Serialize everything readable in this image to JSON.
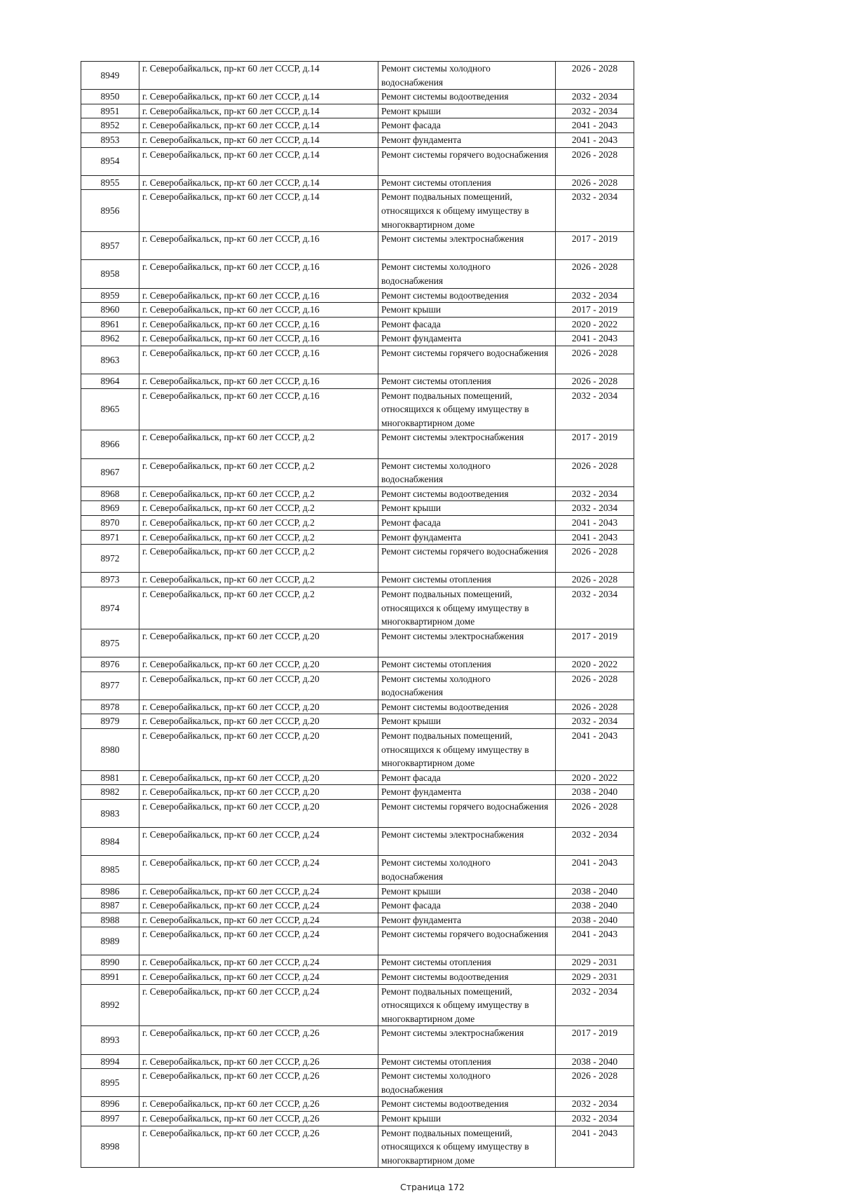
{
  "table": {
    "rows": [
      [
        "8949",
        "г. Северобайкальск, пр-кт 60 лет СССР, д.14",
        "Ремонт системы холодного водоснабжения",
        "2026 - 2028"
      ],
      [
        "8950",
        "г. Северобайкальск, пр-кт 60 лет СССР, д.14",
        "Ремонт системы водоотведения",
        "2032 - 2034"
      ],
      [
        "8951",
        "г. Северобайкальск, пр-кт 60 лет СССР, д.14",
        "Ремонт крыши",
        "2032 - 2034"
      ],
      [
        "8952",
        "г. Северобайкальск, пр-кт 60 лет СССР, д.14",
        "Ремонт фасада",
        "2041 - 2043"
      ],
      [
        "8953",
        "г. Северобайкальск, пр-кт 60 лет СССР, д.14",
        "Ремонт фундамента",
        "2041 - 2043"
      ],
      [
        "8954",
        "г. Северобайкальск, пр-кт 60 лет СССР, д.14",
        "Ремонт системы горячего водоснабжения",
        "2026 - 2028"
      ],
      [
        "8955",
        "г. Северобайкальск, пр-кт 60 лет СССР, д.14",
        "Ремонт системы отопления",
        "2026 - 2028"
      ],
      [
        "8956",
        "г. Северобайкальск, пр-кт 60 лет СССР, д.14",
        "Ремонт подвальных помещений, относящихся к общему имуществу в многоквартирном доме",
        "2032 - 2034"
      ],
      [
        "8957",
        "г. Северобайкальск, пр-кт 60 лет СССР, д.16",
        "Ремонт системы электроснабжения",
        "2017 - 2019"
      ],
      [
        "8958",
        "г. Северобайкальск, пр-кт 60 лет СССР, д.16",
        "Ремонт системы холодного водоснабжения",
        "2026 - 2028"
      ],
      [
        "8959",
        "г. Северобайкальск, пр-кт 60 лет СССР, д.16",
        "Ремонт системы водоотведения",
        "2032 - 2034"
      ],
      [
        "8960",
        "г. Северобайкальск, пр-кт 60 лет СССР, д.16",
        "Ремонт крыши",
        "2017 - 2019"
      ],
      [
        "8961",
        "г. Северобайкальск, пр-кт 60 лет СССР, д.16",
        "Ремонт фасада",
        "2020 - 2022"
      ],
      [
        "8962",
        "г. Северобайкальск, пр-кт 60 лет СССР, д.16",
        "Ремонт фундамента",
        "2041 - 2043"
      ],
      [
        "8963",
        "г. Северобайкальск, пр-кт 60 лет СССР, д.16",
        "Ремонт системы горячего водоснабжения",
        "2026 - 2028"
      ],
      [
        "8964",
        "г. Северобайкальск, пр-кт 60 лет СССР, д.16",
        "Ремонт системы отопления",
        "2026 - 2028"
      ],
      [
        "8965",
        "г. Северобайкальск, пр-кт 60 лет СССР, д.16",
        "Ремонт подвальных помещений, относящихся к общему имуществу в многоквартирном доме",
        "2032 - 2034"
      ],
      [
        "8966",
        "г. Северобайкальск, пр-кт 60 лет СССР, д.2",
        "Ремонт системы электроснабжения",
        "2017 - 2019"
      ],
      [
        "8967",
        "г. Северобайкальск, пр-кт 60 лет СССР, д.2",
        "Ремонт системы холодного водоснабжения",
        "2026 - 2028"
      ],
      [
        "8968",
        "г. Северобайкальск, пр-кт 60 лет СССР, д.2",
        "Ремонт системы водоотведения",
        "2032 - 2034"
      ],
      [
        "8969",
        "г. Северобайкальск, пр-кт 60 лет СССР, д.2",
        "Ремонт крыши",
        "2032 - 2034"
      ],
      [
        "8970",
        "г. Северобайкальск, пр-кт 60 лет СССР, д.2",
        "Ремонт фасада",
        "2041 - 2043"
      ],
      [
        "8971",
        "г. Северобайкальск, пр-кт 60 лет СССР, д.2",
        "Ремонт фундамента",
        "2041 - 2043"
      ],
      [
        "8972",
        "г. Северобайкальск, пр-кт 60 лет СССР, д.2",
        "Ремонт системы горячего водоснабжения",
        "2026 - 2028"
      ],
      [
        "8973",
        "г. Северобайкальск, пр-кт 60 лет СССР, д.2",
        "Ремонт системы отопления",
        "2026 - 2028"
      ],
      [
        "8974",
        "г. Северобайкальск, пр-кт 60 лет СССР, д.2",
        "Ремонт подвальных помещений, относящихся к общему имуществу в многоквартирном доме",
        "2032 - 2034"
      ],
      [
        "8975",
        "г. Северобайкальск, пр-кт 60 лет СССР, д.20",
        "Ремонт системы электроснабжения",
        "2017 - 2019"
      ],
      [
        "8976",
        "г. Северобайкальск, пр-кт 60 лет СССР, д.20",
        "Ремонт системы отопления",
        "2020 - 2022"
      ],
      [
        "8977",
        "г. Северобайкальск, пр-кт 60 лет СССР, д.20",
        "Ремонт системы холодного водоснабжения",
        "2026 - 2028"
      ],
      [
        "8978",
        "г. Северобайкальск, пр-кт 60 лет СССР, д.20",
        "Ремонт системы водоотведения",
        "2026 - 2028"
      ],
      [
        "8979",
        "г. Северобайкальск, пр-кт 60 лет СССР, д.20",
        "Ремонт крыши",
        "2032 - 2034"
      ],
      [
        "8980",
        "г. Северобайкальск, пр-кт 60 лет СССР, д.20",
        "Ремонт подвальных помещений, относящихся к общему имуществу в многоквартирном доме",
        "2041 - 2043"
      ],
      [
        "8981",
        "г. Северобайкальск, пр-кт 60 лет СССР, д.20",
        "Ремонт фасада",
        "2020 - 2022"
      ],
      [
        "8982",
        "г. Северобайкальск, пр-кт 60 лет СССР, д.20",
        "Ремонт фундамента",
        "2038 - 2040"
      ],
      [
        "8983",
        "г. Северобайкальск, пр-кт 60 лет СССР, д.20",
        "Ремонт системы горячего водоснабжения",
        "2026 - 2028"
      ],
      [
        "8984",
        "г. Северобайкальск, пр-кт 60 лет СССР, д.24",
        "Ремонт системы электроснабжения",
        "2032 - 2034"
      ],
      [
        "8985",
        "г. Северобайкальск, пр-кт 60 лет СССР, д.24",
        "Ремонт системы холодного водоснабжения",
        "2041 - 2043"
      ],
      [
        "8986",
        "г. Северобайкальск, пр-кт 60 лет СССР, д.24",
        "Ремонт крыши",
        "2038 - 2040"
      ],
      [
        "8987",
        "г. Северобайкальск, пр-кт 60 лет СССР, д.24",
        "Ремонт фасада",
        "2038 - 2040"
      ],
      [
        "8988",
        "г. Северобайкальск, пр-кт 60 лет СССР, д.24",
        "Ремонт фундамента",
        "2038 - 2040"
      ],
      [
        "8989",
        "г. Северобайкальск, пр-кт 60 лет СССР, д.24",
        "Ремонт системы горячего водоснабжения",
        "2041 - 2043"
      ],
      [
        "8990",
        "г. Северобайкальск, пр-кт 60 лет СССР, д.24",
        "Ремонт системы отопления",
        "2029 - 2031"
      ],
      [
        "8991",
        "г. Северобайкальск, пр-кт 60 лет СССР, д.24",
        "Ремонт системы водоотведения",
        "2029 - 2031"
      ],
      [
        "8992",
        "г. Северобайкальск, пр-кт 60 лет СССР, д.24",
        "Ремонт подвальных помещений, относящихся к общему имуществу в многоквартирном доме",
        "2032 - 2034"
      ],
      [
        "8993",
        "г. Северобайкальск, пр-кт 60 лет СССР, д.26",
        "Ремонт системы электроснабжения",
        "2017 - 2019"
      ],
      [
        "8994",
        "г. Северобайкальск, пр-кт 60 лет СССР, д.26",
        "Ремонт системы отопления",
        "2038 - 2040"
      ],
      [
        "8995",
        "г. Северобайкальск, пр-кт 60 лет СССР, д.26",
        "Ремонт системы холодного водоснабжения",
        "2026 - 2028"
      ],
      [
        "8996",
        "г. Северобайкальск, пр-кт 60 лет СССР, д.26",
        "Ремонт системы водоотведения",
        "2032 - 2034"
      ],
      [
        "8997",
        "г. Северобайкальск, пр-кт 60 лет СССР, д.26",
        "Ремонт крыши",
        "2032 - 2034"
      ],
      [
        "8998",
        "г. Северобайкальск, пр-кт 60 лет СССР, д.26",
        "Ремонт подвальных помещений, относящихся к общему имуществу в многоквартирном доме",
        "2041 - 2043"
      ]
    ]
  },
  "footer": {
    "page_label": "Страница 172"
  }
}
